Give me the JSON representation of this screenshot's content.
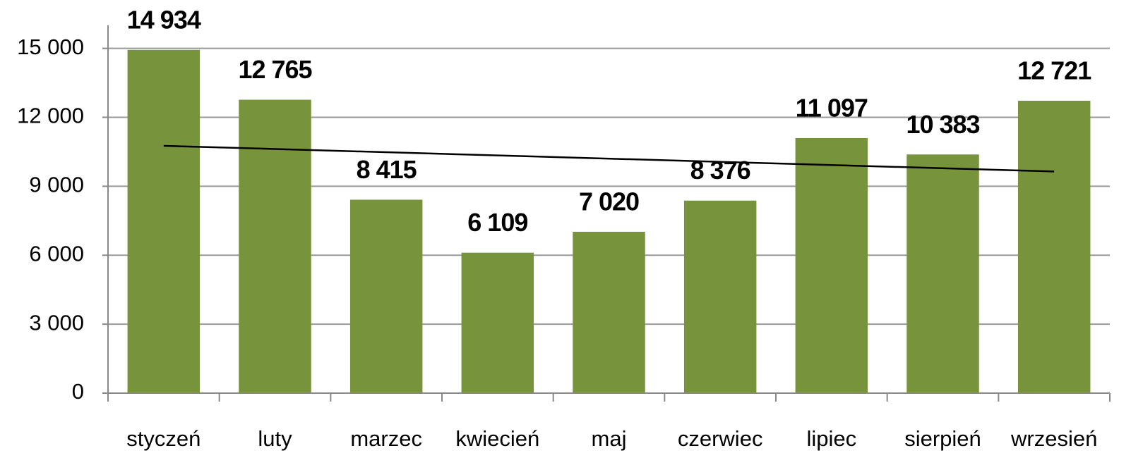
{
  "chart_data": {
    "type": "bar",
    "categories": [
      "styczeń",
      "luty",
      "marzec",
      "kwiecień",
      "maj",
      "czerwiec",
      "lipiec",
      "sierpień",
      "wrzesień"
    ],
    "values": [
      14934,
      12765,
      8415,
      6109,
      7020,
      8376,
      11097,
      10383,
      12721
    ],
    "value_labels": [
      "14 934",
      "12 765",
      "8 415",
      "6 109",
      "7 020",
      "8 376",
      "11 097",
      "10 383",
      "12 721"
    ],
    "color": "#77933c",
    "ylim": [
      0,
      16000
    ],
    "yticks": [
      0,
      {
        "value": 3000,
        "label": "3 000"
      },
      {
        "value": 6000,
        "label": "6 000"
      },
      {
        "value": 9000,
        "label": "9 000"
      },
      {
        "value": 12000,
        "label": "12 000"
      },
      {
        "value": 15000,
        "label": "15 000"
      }
    ],
    "grid": true,
    "trendline": "linear",
    "trendline_color": "#000000"
  }
}
